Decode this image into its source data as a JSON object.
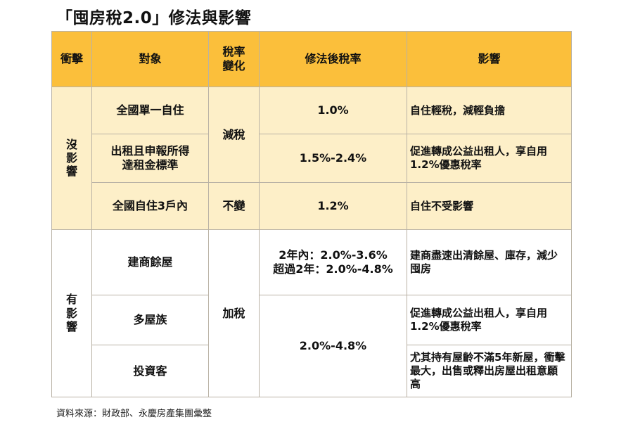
{
  "title": "「囤房稅2.0」修法與影響",
  "headers": {
    "impact_level": "衝擊",
    "target": "對象",
    "rate_change_line1": "稅率",
    "rate_change_line2": "變化",
    "new_rate": "修法後稅率",
    "effect": "影響"
  },
  "groups": {
    "no_effect": "沒影響",
    "has_effect": "有影響"
  },
  "rows": [
    {
      "target": "全國單一自住",
      "rate_change": "減稅",
      "new_rate": "1.0%",
      "effect": "自住輕稅，減輕負擔"
    },
    {
      "target_line1": "出租且申報所得",
      "target_line2": "達租金標準",
      "new_rate": "1.5%-2.4%",
      "effect": "促進轉成公益出租人，享自用1.2%優惠稅率"
    },
    {
      "target": "全國自住3戶內",
      "rate_change": "不變",
      "new_rate": "1.2%",
      "effect": "自住不受影響"
    },
    {
      "target": "建商餘屋",
      "rate_change": "加稅",
      "new_rate_line1": "2年內：2.0%-3.6%",
      "new_rate_line2": "超過2年：2.0%-4.8%",
      "effect": "建商盡速出清餘屋、庫存，減少囤房"
    },
    {
      "target": "多屋族",
      "new_rate": "2.0%-4.8%",
      "effect": "促進轉成公益出租人，享自用1.2%優惠稅率"
    },
    {
      "target": "投資客",
      "effect": "尤其持有屋齡不滿5年新屋，衝擊最大，出售或釋出房屋出租意願高"
    }
  ],
  "source": "資料來源：財政部、永慶房產集團彙整",
  "colors": {
    "header_bg": "#fbbf3b",
    "cream_bg": "#fdefc8",
    "border": "#b9b2a5"
  }
}
